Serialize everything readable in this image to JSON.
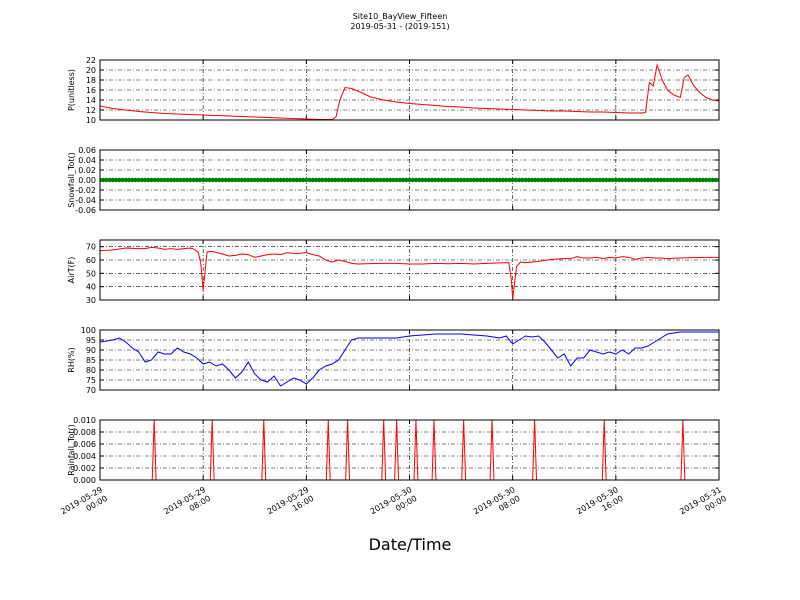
{
  "title": "Site10_BayView_Fifteen",
  "subtitle": "2019-05-31 - (2019-151)",
  "xlabel": "Date/Time",
  "x_ticks": [
    {
      "t": 0,
      "line1": "2019-05-29",
      "line2": "00:00"
    },
    {
      "t": 8,
      "line1": "2019-05-29",
      "line2": "08:00"
    },
    {
      "t": 16,
      "line1": "2019-05-29",
      "line2": "16:00"
    },
    {
      "t": 24,
      "line1": "2019-05-30",
      "line2": "00:00"
    },
    {
      "t": 32,
      "line1": "2019-05-30",
      "line2": "08:00"
    },
    {
      "t": 40,
      "line1": "2019-05-30",
      "line2": "16:00"
    },
    {
      "t": 48,
      "line1": "2019-05-31",
      "line2": "00:00"
    }
  ],
  "chart_data": [
    {
      "type": "line",
      "ylabel": "P(unitless)",
      "ylim": [
        10,
        22
      ],
      "yticks": [
        10,
        12,
        14,
        16,
        18,
        20,
        22
      ],
      "grid": true,
      "series": [
        {
          "color": "#ff0000",
          "points": [
            [
              0,
              12.8
            ],
            [
              1,
              12.3
            ],
            [
              2,
              12.0
            ],
            [
              3,
              11.7
            ],
            [
              4,
              11.5
            ],
            [
              5,
              11.3
            ],
            [
              6,
              11.2
            ],
            [
              7,
              11.1
            ],
            [
              8,
              11.0
            ],
            [
              9,
              10.9
            ],
            [
              10,
              10.8
            ],
            [
              11,
              10.7
            ],
            [
              12,
              10.6
            ],
            [
              13,
              10.5
            ],
            [
              14,
              10.4
            ],
            [
              15,
              10.3
            ],
            [
              16,
              10.2
            ],
            [
              17,
              10.1
            ],
            [
              18,
              10.1
            ],
            [
              18.3,
              10.6
            ],
            [
              18.6,
              14.0
            ],
            [
              19,
              16.5
            ],
            [
              19.5,
              16.3
            ],
            [
              20,
              15.8
            ],
            [
              21,
              14.6
            ],
            [
              22,
              14.0
            ],
            [
              23,
              13.6
            ],
            [
              24,
              13.3
            ],
            [
              25,
              13.1
            ],
            [
              26,
              12.9
            ],
            [
              27,
              12.7
            ],
            [
              28,
              12.6
            ],
            [
              29,
              12.4
            ],
            [
              30,
              12.3
            ],
            [
              31,
              12.2
            ],
            [
              32,
              12.1
            ],
            [
              33,
              12.0
            ],
            [
              34,
              11.9
            ],
            [
              35,
              11.8
            ],
            [
              36,
              11.8
            ],
            [
              37,
              11.7
            ],
            [
              38,
              11.6
            ],
            [
              39,
              11.6
            ],
            [
              40,
              11.5
            ],
            [
              41,
              11.4
            ],
            [
              42,
              11.4
            ],
            [
              42.3,
              11.5
            ],
            [
              42.6,
              17.5
            ],
            [
              42.9,
              16.8
            ],
            [
              43.2,
              21.0
            ],
            [
              43.6,
              18.0
            ],
            [
              44,
              16.0
            ],
            [
              44.5,
              15.0
            ],
            [
              45,
              14.5
            ],
            [
              45.3,
              18.5
            ],
            [
              45.6,
              19.0
            ],
            [
              46,
              17.0
            ],
            [
              46.5,
              15.5
            ],
            [
              47,
              14.5
            ],
            [
              47.5,
              14.0
            ],
            [
              48,
              13.8
            ]
          ]
        }
      ]
    },
    {
      "type": "scatter",
      "ylabel": "Snowfall_Tot()",
      "ylim": [
        -0.06,
        0.06
      ],
      "yticks": [
        -0.06,
        -0.04,
        -0.02,
        0.0,
        0.02,
        0.04,
        0.06
      ],
      "grid": true,
      "series": [
        {
          "color": "#008000",
          "constant": 0.0,
          "x_range": [
            0,
            48
          ],
          "interval": 0.25
        }
      ]
    },
    {
      "type": "line",
      "ylabel": "AirT(F)",
      "ylim": [
        30,
        75
      ],
      "yticks": [
        30,
        40,
        50,
        60,
        70
      ],
      "grid": true,
      "series": [
        {
          "color": "#ff0000",
          "points": [
            [
              0,
              67
            ],
            [
              1,
              67.5
            ],
            [
              2,
              69
            ],
            [
              3,
              68.5
            ],
            [
              3.5,
              68.5
            ],
            [
              4,
              69.5
            ],
            [
              4.5,
              69
            ],
            [
              5,
              68
            ],
            [
              5.5,
              68.5
            ],
            [
              6,
              68
            ],
            [
              6.5,
              68.5
            ],
            [
              7,
              69
            ],
            [
              7.3,
              68
            ],
            [
              7.6,
              66
            ],
            [
              7.8,
              59
            ],
            [
              8,
              37
            ],
            [
              8.3,
              66
            ],
            [
              8.7,
              66.5
            ],
            [
              9.5,
              64.5
            ],
            [
              10,
              63
            ],
            [
              10.5,
              63.5
            ],
            [
              11,
              64.5
            ],
            [
              11.5,
              64
            ],
            [
              12,
              62
            ],
            [
              12.5,
              63
            ],
            [
              13,
              64
            ],
            [
              13.5,
              64.5
            ],
            [
              14,
              64
            ],
            [
              14.5,
              65.5
            ],
            [
              15,
              65
            ],
            [
              15.5,
              65
            ],
            [
              16,
              65.5
            ],
            [
              16.5,
              64
            ],
            [
              17,
              63
            ],
            [
              17.5,
              60
            ],
            [
              18,
              58.5
            ],
            [
              18.5,
              60
            ],
            [
              19,
              59
            ],
            [
              19.5,
              57.5
            ],
            [
              20,
              57
            ],
            [
              21,
              57.3
            ],
            [
              22,
              57.5
            ],
            [
              23,
              57.5
            ],
            [
              24,
              57
            ],
            [
              25,
              57
            ],
            [
              26,
              57.5
            ],
            [
              27,
              57.2
            ],
            [
              28,
              57.5
            ],
            [
              29,
              57
            ],
            [
              30,
              57.5
            ],
            [
              31,
              57.8
            ],
            [
              31.7,
              58
            ],
            [
              31.9,
              45
            ],
            [
              32,
              31
            ],
            [
              32.3,
              55
            ],
            [
              32.6,
              58.5
            ],
            [
              33,
              58
            ],
            [
              34,
              59
            ],
            [
              35,
              60.5
            ],
            [
              36,
              61
            ],
            [
              36.5,
              61
            ],
            [
              37,
              62.5
            ],
            [
              37.5,
              61.5
            ],
            [
              38,
              61.5
            ],
            [
              38.5,
              62
            ],
            [
              39,
              61
            ],
            [
              39.5,
              62
            ],
            [
              40,
              61.5
            ],
            [
              40.5,
              62.5
            ],
            [
              41,
              62
            ],
            [
              41.5,
              60.5
            ],
            [
              42,
              61.5
            ],
            [
              42.5,
              62
            ],
            [
              43,
              61.5
            ],
            [
              43.5,
              61.5
            ],
            [
              44,
              61
            ],
            [
              45,
              61.5
            ],
            [
              46,
              61.8
            ],
            [
              47,
              62
            ],
            [
              48,
              62
            ]
          ]
        }
      ]
    },
    {
      "type": "line",
      "ylabel": "RH(%)",
      "ylim": [
        70,
        100
      ],
      "yticks": [
        70,
        75,
        80,
        85,
        90,
        95,
        100
      ],
      "grid": true,
      "series": [
        {
          "color": "#0000ff",
          "points": [
            [
              0,
              94
            ],
            [
              1,
              95
            ],
            [
              1.5,
              96
            ],
            [
              2,
              94
            ],
            [
              2.5,
              91
            ],
            [
              3,
              89
            ],
            [
              3.5,
              84
            ],
            [
              4,
              85
            ],
            [
              4.5,
              89
            ],
            [
              5,
              88
            ],
            [
              5.5,
              88
            ],
            [
              6,
              91
            ],
            [
              6.5,
              89
            ],
            [
              7,
              88
            ],
            [
              7.5,
              86
            ],
            [
              8,
              83
            ],
            [
              8.5,
              84
            ],
            [
              9,
              82
            ],
            [
              9.5,
              83
            ],
            [
              10,
              80
            ],
            [
              10.5,
              76
            ],
            [
              11,
              79
            ],
            [
              11.5,
              84
            ],
            [
              12,
              78
            ],
            [
              12.5,
              75
            ],
            [
              13,
              74
            ],
            [
              13.5,
              77
            ],
            [
              14,
              72
            ],
            [
              14.5,
              74
            ],
            [
              15,
              76
            ],
            [
              15.5,
              75
            ],
            [
              16,
              73
            ],
            [
              16.5,
              76
            ],
            [
              17,
              80
            ],
            [
              17.5,
              82
            ],
            [
              18,
              83
            ],
            [
              18.5,
              85
            ],
            [
              19,
              90
            ],
            [
              19.5,
              95
            ],
            [
              20,
              96
            ],
            [
              21,
              96
            ],
            [
              22,
              96
            ],
            [
              23,
              96
            ],
            [
              24,
              97
            ],
            [
              25,
              97.5
            ],
            [
              26,
              98
            ],
            [
              27,
              98
            ],
            [
              28,
              98
            ],
            [
              29,
              97.5
            ],
            [
              30,
              97
            ],
            [
              30.5,
              96.5
            ],
            [
              31,
              96
            ],
            [
              31.5,
              97
            ],
            [
              32,
              93
            ],
            [
              32.5,
              95
            ],
            [
              33,
              97
            ],
            [
              33.5,
              96.5
            ],
            [
              34,
              97
            ],
            [
              34.5,
              94
            ],
            [
              35,
              90
            ],
            [
              35.5,
              86
            ],
            [
              36,
              88
            ],
            [
              36.5,
              82
            ],
            [
              37,
              86
            ],
            [
              37.5,
              86
            ],
            [
              38,
              90
            ],
            [
              38.5,
              89
            ],
            [
              39,
              88
            ],
            [
              39.5,
              89
            ],
            [
              40,
              88
            ],
            [
              40.5,
              90
            ],
            [
              41,
              88
            ],
            [
              41.5,
              91
            ],
            [
              42,
              91
            ],
            [
              42.5,
              92
            ],
            [
              43,
              94
            ],
            [
              43.5,
              96
            ],
            [
              44,
              98
            ],
            [
              45,
              99
            ],
            [
              46,
              99
            ],
            [
              47,
              99
            ],
            [
              48,
              99
            ]
          ]
        }
      ]
    },
    {
      "type": "line",
      "ylabel": "Rainfall_Tot()",
      "ylim": [
        0,
        0.01
      ],
      "yticks": [
        0.0,
        0.002,
        0.004,
        0.006,
        0.008,
        0.01
      ],
      "grid": true,
      "series": [
        {
          "color": "#ff0000",
          "spikes": [
            4.2,
            8.7,
            12.7,
            17.7,
            19.2,
            22.0,
            23.0,
            24.5,
            25.9,
            28.2,
            30.4,
            33.7,
            39.1,
            45.2
          ],
          "spike_value": 0.01,
          "baseline": 0
        }
      ]
    }
  ]
}
